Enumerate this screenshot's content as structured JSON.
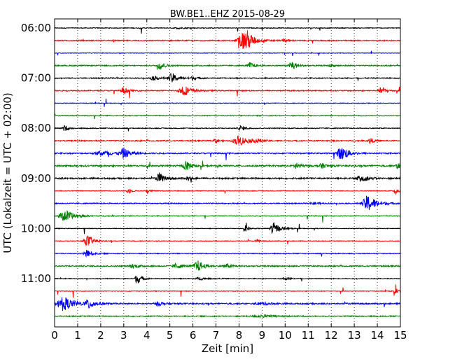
{
  "chart_data": {
    "type": "line",
    "title": "BW.BE1..EHZ 2015-08-29",
    "xlabel": "Zeit  [min]",
    "ylabel": "UTC (Lokalzeit = UTC + 02:00)",
    "xlim": [
      0,
      15
    ],
    "x_ticks": [
      "0",
      "1",
      "2",
      "3",
      "4",
      "5",
      "6",
      "7",
      "8",
      "9",
      "10",
      "11",
      "12",
      "13",
      "14",
      "15"
    ],
    "y_tick_labels": [
      "06:00",
      "07:00",
      "08:00",
      "09:00",
      "10:00",
      "11:00"
    ],
    "trace_interval_min": 15,
    "grid": "vertical dotted",
    "colors": [
      "#000000",
      "#ff0000",
      "#0000ff",
      "#008000"
    ],
    "traces": [
      {
        "start": "06:00",
        "base_amp": 0.06,
        "events": [
          [
            5.4,
            0.1,
            0.5
          ]
        ]
      },
      {
        "start": "06:15",
        "base_amp": 0.08,
        "events": [
          [
            8.2,
            1.4,
            0.6
          ],
          [
            8.35,
            0.8,
            0.3
          ],
          [
            10.0,
            0.2,
            0.3
          ]
        ]
      },
      {
        "start": "06:30",
        "base_amp": 0.05,
        "events": []
      },
      {
        "start": "06:45",
        "base_amp": 0.08,
        "events": [
          [
            4.6,
            0.7,
            0.3
          ],
          [
            8.5,
            0.5,
            0.3
          ],
          [
            10.3,
            0.9,
            0.3
          ],
          [
            12.0,
            0.2,
            0.3
          ]
        ]
      },
      {
        "start": "07:00",
        "base_amp": 0.08,
        "events": [
          [
            5.1,
            0.8,
            0.4
          ],
          [
            4.3,
            0.3,
            0.4
          ],
          [
            6.0,
            0.2,
            0.4
          ]
        ]
      },
      {
        "start": "07:15",
        "base_amp": 0.08,
        "events": [
          [
            3.0,
            0.6,
            0.3
          ],
          [
            5.6,
            0.9,
            0.5
          ],
          [
            14.2,
            0.6,
            0.3
          ]
        ]
      },
      {
        "start": "07:30",
        "base_amp": 0.05,
        "events": []
      },
      {
        "start": "07:45",
        "base_amp": 0.06,
        "events": []
      },
      {
        "start": "08:00",
        "base_amp": 0.07,
        "events": [
          [
            0.45,
            0.5,
            0.2
          ],
          [
            8.1,
            0.4,
            0.3
          ]
        ]
      },
      {
        "start": "08:15",
        "base_amp": 0.09,
        "events": [
          [
            8.0,
            0.8,
            0.6
          ],
          [
            8.8,
            0.3,
            0.3
          ],
          [
            7.0,
            0.4,
            0.2
          ],
          [
            13.7,
            0.5,
            0.2
          ]
        ]
      },
      {
        "start": "08:30",
        "base_amp": 0.1,
        "events": [
          [
            2.1,
            0.4,
            0.8
          ],
          [
            3.0,
            0.8,
            0.4
          ],
          [
            12.4,
            0.9,
            0.4
          ],
          [
            12.6,
            0.4,
            0.4
          ]
        ]
      },
      {
        "start": "08:45",
        "base_amp": 0.12,
        "events": [
          [
            5.7,
            0.8,
            0.3
          ],
          [
            10.5,
            0.6,
            0.3
          ],
          [
            11.6,
            0.4,
            0.3
          ],
          [
            14.9,
            0.5,
            0.2
          ]
        ]
      },
      {
        "start": "09:00",
        "base_amp": 0.12,
        "events": [
          [
            4.55,
            0.9,
            0.3
          ],
          [
            13.3,
            0.7,
            0.4
          ],
          [
            5.8,
            0.4,
            0.2
          ]
        ]
      },
      {
        "start": "09:15",
        "base_amp": 0.05,
        "events": [
          [
            3.2,
            0.5,
            0.2
          ],
          [
            4.0,
            0.4,
            0.2
          ],
          [
            14.8,
            0.5,
            0.2
          ]
        ]
      },
      {
        "start": "09:30",
        "base_amp": 0.08,
        "events": [
          [
            13.6,
            1.3,
            0.6
          ],
          [
            11.3,
            0.2,
            0.4
          ]
        ]
      },
      {
        "start": "09:45",
        "base_amp": 0.06,
        "events": [
          [
            0.45,
            1.0,
            0.6
          ]
        ]
      },
      {
        "start": "10:00",
        "base_amp": 0.05,
        "events": [
          [
            8.3,
            0.5,
            0.2
          ],
          [
            9.5,
            1.0,
            0.4
          ]
        ]
      },
      {
        "start": "10:15",
        "base_amp": 0.05,
        "events": [
          [
            1.45,
            0.9,
            0.4
          ],
          [
            8.8,
            0.2,
            0.2
          ]
        ]
      },
      {
        "start": "10:30",
        "base_amp": 0.06,
        "events": [
          [
            1.4,
            0.6,
            0.4
          ]
        ]
      },
      {
        "start": "10:45",
        "base_amp": 0.1,
        "events": [
          [
            6.2,
            0.9,
            0.4
          ],
          [
            5.3,
            0.4,
            0.4
          ],
          [
            3.4,
            0.3,
            0.4
          ],
          [
            7.5,
            0.3,
            0.4
          ]
        ]
      },
      {
        "start": "11:00",
        "base_amp": 0.06,
        "events": [
          [
            3.6,
            0.8,
            0.3
          ],
          [
            6.3,
            0.2,
            0.5
          ],
          [
            10.0,
            0.2,
            0.4
          ]
        ]
      },
      {
        "start": "11:15",
        "base_amp": 0.05,
        "events": [
          [
            14.8,
            0.4,
            0.3
          ]
        ]
      },
      {
        "start": "11:30",
        "base_amp": 0.1,
        "events": [
          [
            0.4,
            1.1,
            0.7
          ],
          [
            1.5,
            0.8,
            0.4
          ],
          [
            4.5,
            0.3,
            0.4
          ],
          [
            9.0,
            0.2,
            0.6
          ]
        ]
      },
      {
        "start": "11:45",
        "base_amp": 0.08,
        "events": [
          [
            9.0,
            0.2,
            1.0
          ]
        ]
      }
    ]
  }
}
